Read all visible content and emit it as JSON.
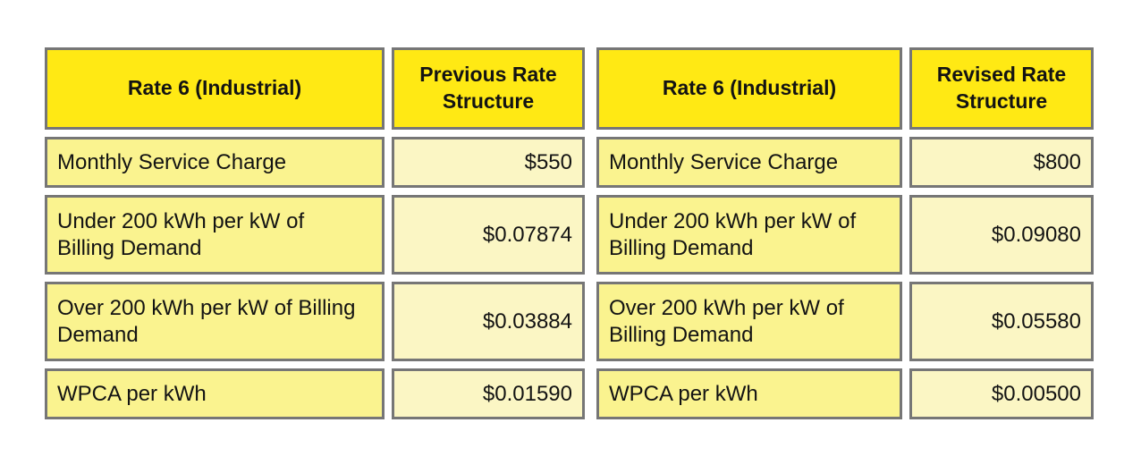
{
  "colors": {
    "page_bg": "#ffffff",
    "header_bg": "#ffe914",
    "label_bg": "#faf38f",
    "value_bg": "#fbf6c4",
    "border_color": "#767676",
    "text_color": "#131313"
  },
  "chart_data": [
    {
      "type": "table",
      "columns": [
        "Rate 6 (Industrial)",
        "Previous Rate Structure"
      ],
      "rows": [
        [
          "Monthly Service Charge",
          "$550"
        ],
        [
          "Under 200 kWh per kW of Billing Demand",
          "$0.07874"
        ],
        [
          "Over 200 kWh per kW of Billing Demand",
          "$0.03884"
        ],
        [
          "WPCA per kWh",
          "$0.01590"
        ]
      ]
    },
    {
      "type": "table",
      "columns": [
        "Rate 6 (Industrial)",
        "Revised Rate Structure"
      ],
      "rows": [
        [
          "Monthly Service Charge",
          "$800"
        ],
        [
          "Under 200 kWh per kW of Billing Demand",
          "$0.09080"
        ],
        [
          "Over 200 kWh per kW of Billing Demand",
          "$0.05580"
        ],
        [
          "WPCA per kWh",
          "$0.00500"
        ]
      ]
    }
  ]
}
